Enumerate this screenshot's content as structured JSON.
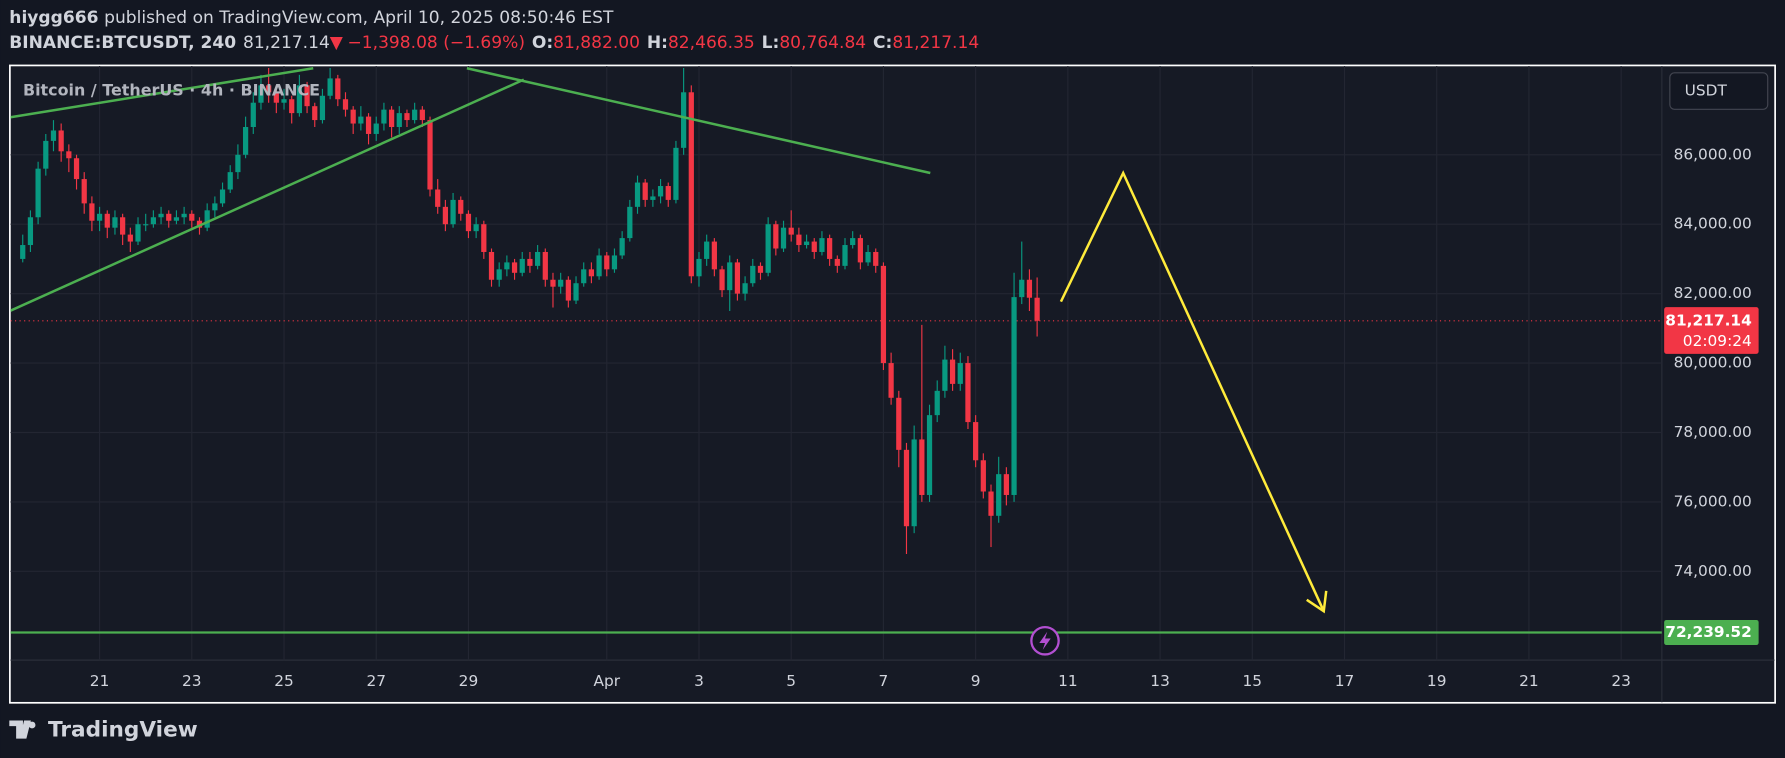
{
  "header": {
    "user": "hiygg666",
    "published": "published on TradingView.com, April 10, 2025 08:50:46 EST",
    "symbol": "BINANCE:BTCUSDT, 240",
    "price": "81,217.14",
    "arrow": "▼",
    "change": "−1,398.08 (−1.69%)",
    "ohlc": [
      {
        "key": "O:",
        "value": "81,882.00"
      },
      {
        "key": "H:",
        "value": "82,466.35"
      },
      {
        "key": "L:",
        "value": "80,764.84"
      },
      {
        "key": "C:",
        "value": "81,217.14"
      }
    ]
  },
  "footer": "TradingView",
  "chart_data": {
    "type": "candlestick",
    "legend": "Bitcoin / TetherUS · 4h · BINANCE",
    "currency": "USDT",
    "countdown": "02:09:24",
    "up_color": "#089981",
    "down_color": "#f23645",
    "grid": true,
    "xlim": [
      -1.6,
      213.3
    ],
    "ylim": [
      71443,
      88557
    ],
    "xticks": [
      {
        "value": 10,
        "label": "21"
      },
      {
        "value": 22,
        "label": "23"
      },
      {
        "value": 34,
        "label": "25"
      },
      {
        "value": 46,
        "label": "27"
      },
      {
        "value": 58,
        "label": "29"
      },
      {
        "value": 76,
        "label": "Apr"
      },
      {
        "value": 88,
        "label": "3"
      },
      {
        "value": 100,
        "label": "5"
      },
      {
        "value": 112,
        "label": "7"
      },
      {
        "value": 124,
        "label": "9"
      },
      {
        "value": 136,
        "label": "11"
      },
      {
        "value": 148,
        "label": "13"
      },
      {
        "value": 160,
        "label": "15"
      },
      {
        "value": 172,
        "label": "17"
      },
      {
        "value": 184,
        "label": "19"
      },
      {
        "value": 196,
        "label": "21"
      },
      {
        "value": 208,
        "label": "23"
      }
    ],
    "yticks": [
      {
        "value": 74000,
        "label": "74,000.00"
      },
      {
        "value": 76000,
        "label": "76,000.00"
      },
      {
        "value": 78000,
        "label": "78,000.00"
      },
      {
        "value": 80000,
        "label": "80,000.00"
      },
      {
        "value": 82000,
        "label": "82,000.00"
      },
      {
        "value": 84000,
        "label": "84,000.00"
      },
      {
        "value": 86000,
        "label": "86,000.00"
      }
    ],
    "last_price": {
      "value": 81217.14,
      "label": "81,217.14",
      "color": "#f23645"
    },
    "levels": [
      {
        "value": 72239.52,
        "label": "72,239.52",
        "color": "#4caf50"
      }
    ],
    "trendlines": [
      {
        "color": "#4caf50",
        "x": [
          -1.6,
          37.8
        ],
        "y": [
          87082,
          88492
        ]
      },
      {
        "color": "#4caf50",
        "x": [
          -1.6,
          65.2
        ],
        "y": [
          81508,
          88164
        ]
      },
      {
        "color": "#4caf50",
        "x": [
          57.8,
          118.1
        ],
        "y": [
          88492,
          85475
        ]
      },
      {
        "color": "#ffeb3b",
        "arrow": true,
        "x": [
          135.1,
          143.2,
          169.3
        ],
        "y": [
          81770,
          85475,
          72852
        ]
      }
    ],
    "candles": [
      [
        83000,
        83700,
        82900,
        83400
      ],
      [
        83400,
        84400,
        83200,
        84200
      ],
      [
        84200,
        85800,
        84000,
        85600
      ],
      [
        85600,
        86600,
        85400,
        86400
      ],
      [
        86400,
        87000,
        86100,
        86700
      ],
      [
        86700,
        86900,
        85800,
        86100
      ],
      [
        86100,
        86300,
        85500,
        85900
      ],
      [
        85900,
        86000,
        85000,
        85300
      ],
      [
        85300,
        85500,
        84300,
        84600
      ],
      [
        84600,
        84800,
        83800,
        84100
      ],
      [
        84100,
        84500,
        83800,
        84300
      ],
      [
        84300,
        84400,
        83600,
        83900
      ],
      [
        83900,
        84400,
        83700,
        84200
      ],
      [
        84200,
        84300,
        83400,
        83700
      ],
      [
        83700,
        83900,
        83200,
        83500
      ],
      [
        83500,
        84200,
        83400,
        84000
      ],
      [
        84000,
        84300,
        83800,
        84000
      ],
      [
        84000,
        84400,
        83900,
        84200
      ],
      [
        84200,
        84500,
        84000,
        84300
      ],
      [
        84300,
        84400,
        83900,
        84100
      ],
      [
        84100,
        84400,
        84000,
        84200
      ],
      [
        84200,
        84500,
        84000,
        84300
      ],
      [
        84300,
        84400,
        83900,
        84100
      ],
      [
        84100,
        84200,
        83700,
        83900
      ],
      [
        83900,
        84600,
        83800,
        84400
      ],
      [
        84400,
        84800,
        84200,
        84600
      ],
      [
        84600,
        85200,
        84500,
        85000
      ],
      [
        85000,
        85700,
        84900,
        85500
      ],
      [
        85500,
        86300,
        85300,
        86000
      ],
      [
        86000,
        87100,
        85900,
        86800
      ],
      [
        86800,
        87800,
        86600,
        87500
      ],
      [
        87500,
        88300,
        87300,
        88000
      ],
      [
        88000,
        88500,
        87500,
        87800
      ],
      [
        87800,
        88000,
        87200,
        87500
      ],
      [
        87500,
        87900,
        87300,
        87600
      ],
      [
        87600,
        87700,
        86900,
        87200
      ],
      [
        87200,
        88300,
        87100,
        88000
      ],
      [
        88000,
        88100,
        87200,
        87400
      ],
      [
        87400,
        87500,
        86800,
        87000
      ],
      [
        87000,
        87900,
        86900,
        87700
      ],
      [
        87700,
        88500,
        87600,
        88200
      ],
      [
        88200,
        88300,
        87400,
        87600
      ],
      [
        87600,
        87800,
        87100,
        87300
      ],
      [
        87300,
        87400,
        86600,
        86900
      ],
      [
        86900,
        87400,
        86700,
        87100
      ],
      [
        87100,
        87200,
        86300,
        86600
      ],
      [
        86600,
        87100,
        86400,
        86900
      ],
      [
        86900,
        87500,
        86700,
        87300
      ],
      [
        87300,
        87400,
        86500,
        86800
      ],
      [
        86800,
        87400,
        86600,
        87200
      ],
      [
        87200,
        87300,
        86800,
        87000
      ],
      [
        87000,
        87500,
        86900,
        87300
      ],
      [
        87300,
        87400,
        86800,
        87000
      ],
      [
        87000,
        87100,
        84800,
        85000
      ],
      [
        85000,
        85300,
        84300,
        84500
      ],
      [
        84500,
        84700,
        83800,
        84000
      ],
      [
        84000,
        84900,
        83900,
        84700
      ],
      [
        84700,
        84800,
        84100,
        84300
      ],
      [
        84300,
        84400,
        83600,
        83800
      ],
      [
        83800,
        84200,
        83600,
        84000
      ],
      [
        84000,
        84100,
        83000,
        83200
      ],
      [
        83200,
        83300,
        82200,
        82400
      ],
      [
        82400,
        82900,
        82200,
        82700
      ],
      [
        82700,
        83100,
        82500,
        82900
      ],
      [
        82900,
        83000,
        82400,
        82600
      ],
      [
        82600,
        83200,
        82500,
        83000
      ],
      [
        83000,
        83200,
        82600,
        82800
      ],
      [
        82800,
        83400,
        82700,
        83200
      ],
      [
        83200,
        83300,
        82200,
        82400
      ],
      [
        82400,
        82600,
        81600,
        82200
      ],
      [
        82200,
        82600,
        82000,
        82400
      ],
      [
        82400,
        82500,
        81600,
        81800
      ],
      [
        81800,
        82500,
        81700,
        82300
      ],
      [
        82300,
        82900,
        82200,
        82700
      ],
      [
        82700,
        82900,
        82300,
        82500
      ],
      [
        82500,
        83300,
        82400,
        83100
      ],
      [
        83100,
        83200,
        82500,
        82700
      ],
      [
        82700,
        83300,
        82600,
        83100
      ],
      [
        83100,
        83800,
        83000,
        83600
      ],
      [
        83600,
        84700,
        83500,
        84500
      ],
      [
        84500,
        85400,
        84300,
        85200
      ],
      [
        85200,
        85300,
        84500,
        84700
      ],
      [
        84700,
        85000,
        84500,
        84800
      ],
      [
        84800,
        85300,
        84600,
        85100
      ],
      [
        85100,
        85200,
        84500,
        84700
      ],
      [
        84700,
        86400,
        84600,
        86200
      ],
      [
        86200,
        88500,
        86000,
        87800
      ],
      [
        87800,
        88000,
        82300,
        82500
      ],
      [
        82500,
        83200,
        82200,
        83000
      ],
      [
        83000,
        83700,
        82800,
        83500
      ],
      [
        83500,
        83600,
        82500,
        82700
      ],
      [
        82700,
        82800,
        81900,
        82100
      ],
      [
        82100,
        83100,
        81500,
        82900
      ],
      [
        82900,
        83000,
        81800,
        82000
      ],
      [
        82000,
        82500,
        81800,
        82300
      ],
      [
        82300,
        83000,
        82200,
        82800
      ],
      [
        82800,
        82900,
        82400,
        82600
      ],
      [
        82600,
        84200,
        82500,
        84000
      ],
      [
        84000,
        84100,
        83100,
        83300
      ],
      [
        83300,
        84100,
        83200,
        83900
      ],
      [
        83900,
        84400,
        83500,
        83700
      ],
      [
        83700,
        83900,
        83200,
        83400
      ],
      [
        83400,
        83700,
        83300,
        83500
      ],
      [
        83500,
        83600,
        83000,
        83200
      ],
      [
        83200,
        83800,
        83100,
        83600
      ],
      [
        83600,
        83700,
        82800,
        83000
      ],
      [
        83000,
        83100,
        82600,
        82800
      ],
      [
        82800,
        83600,
        82700,
        83400
      ],
      [
        83400,
        83800,
        83300,
        83600
      ],
      [
        83600,
        83700,
        82700,
        82900
      ],
      [
        82900,
        83400,
        82800,
        83200
      ],
      [
        83200,
        83300,
        82600,
        82800
      ],
      [
        82800,
        82900,
        79800,
        80000
      ],
      [
        80000,
        80300,
        78800,
        79000
      ],
      [
        79000,
        79200,
        77000,
        77500
      ],
      [
        77500,
        77700,
        74500,
        75300
      ],
      [
        75300,
        78200,
        75100,
        77800
      ],
      [
        77800,
        81100,
        76000,
        76200
      ],
      [
        76200,
        78800,
        76000,
        78500
      ],
      [
        78500,
        79500,
        78300,
        79200
      ],
      [
        79200,
        80500,
        79000,
        80100
      ],
      [
        80100,
        80400,
        79200,
        79400
      ],
      [
        79400,
        80300,
        79200,
        80000
      ],
      [
        80000,
        80200,
        78100,
        78300
      ],
      [
        78300,
        78500,
        77000,
        77200
      ],
      [
        77200,
        77400,
        76100,
        76300
      ],
      [
        76300,
        76500,
        74700,
        75600
      ],
      [
        75600,
        77300,
        75400,
        76800
      ],
      [
        76800,
        77000,
        75900,
        76200
      ],
      [
        76200,
        82600,
        76000,
        81900
      ],
      [
        81900,
        83500,
        81700,
        82400
      ],
      [
        82400,
        82700,
        81500,
        81882
      ],
      [
        81882,
        82466.35,
        80764.84,
        81217.14
      ]
    ]
  }
}
